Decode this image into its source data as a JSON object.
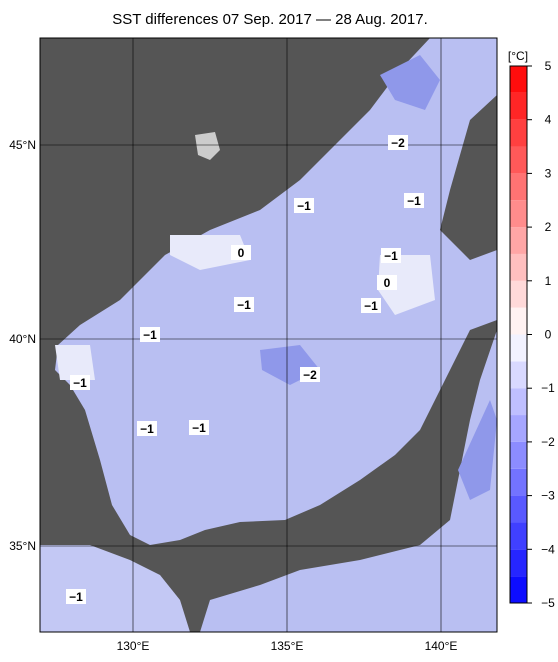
{
  "title": "SST differences 07 Sep. 2017 — 28 Aug. 2017.",
  "map": {
    "lat_labels": [
      "45°N",
      "40°N",
      "35°N"
    ],
    "lon_labels": [
      "130°E",
      "135°E",
      "140°E"
    ],
    "contour_labels": [
      "−2",
      "−1",
      "−1",
      "0",
      "−1",
      "0",
      "−1",
      "−1",
      "−1",
      "−2",
      "−1",
      "−1",
      "−1",
      "−1"
    ]
  },
  "colorbar": {
    "unit": "[°C]",
    "range": [
      -5,
      5
    ],
    "ticks": [
      5,
      4,
      3,
      2,
      1,
      0,
      {
        "value": -1,
        "label": "−1"
      },
      {
        "value": -2,
        "label": "−2"
      },
      {
        "value": -3,
        "label": "−3"
      },
      {
        "value": -4,
        "label": "−4"
      },
      {
        "value": -5,
        "label": "−5"
      }
    ]
  }
}
